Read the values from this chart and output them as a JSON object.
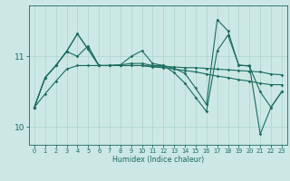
{
  "bg_color": "#cce8e4",
  "line_color": "#1a6b60",
  "grid_color": "#aad4cc",
  "xlabel": "Humidex (Indice chaleur)",
  "xlim": [
    -0.5,
    23.5
  ],
  "ylim": [
    9.75,
    11.72
  ],
  "yticks": [
    10,
    11
  ],
  "xticks": [
    0,
    1,
    2,
    3,
    4,
    5,
    6,
    7,
    8,
    9,
    10,
    11,
    12,
    13,
    14,
    15,
    16,
    17,
    18,
    19,
    20,
    21,
    22,
    23
  ],
  "lines": [
    [
      10.28,
      10.47,
      10.65,
      10.82,
      10.87,
      10.87,
      10.87,
      10.87,
      10.87,
      10.87,
      10.87,
      10.86,
      10.86,
      10.85,
      10.84,
      10.84,
      10.83,
      10.82,
      10.81,
      10.8,
      10.79,
      10.78,
      10.75,
      10.74
    ],
    [
      10.28,
      10.7,
      10.87,
      11.07,
      11.0,
      11.15,
      10.87,
      10.87,
      10.87,
      10.87,
      10.87,
      10.85,
      10.84,
      10.82,
      10.8,
      10.78,
      10.75,
      10.72,
      10.7,
      10.67,
      10.65,
      10.62,
      10.6,
      10.6
    ],
    [
      10.28,
      10.7,
      10.87,
      11.07,
      11.32,
      11.1,
      10.87,
      10.87,
      10.88,
      10.9,
      10.9,
      10.87,
      10.87,
      10.77,
      10.62,
      10.42,
      10.22,
      11.08,
      11.3,
      10.88,
      10.86,
      10.5,
      10.28,
      10.5
    ],
    [
      10.28,
      10.7,
      10.87,
      11.07,
      11.32,
      11.1,
      10.87,
      10.87,
      10.88,
      11.0,
      11.08,
      10.9,
      10.87,
      10.83,
      10.76,
      10.55,
      10.32,
      11.52,
      11.36,
      10.87,
      10.87,
      9.9,
      10.28,
      10.5
    ]
  ]
}
